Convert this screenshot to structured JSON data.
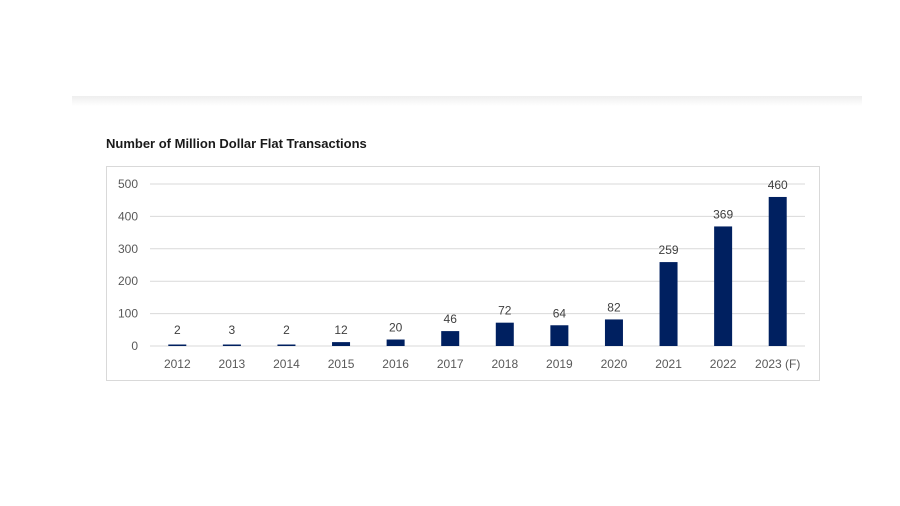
{
  "chart_data": {
    "type": "bar",
    "title": "Number of Million Dollar Flat Transactions",
    "xlabel": "",
    "ylabel": "",
    "categories": [
      "2012",
      "2013",
      "2014",
      "2015",
      "2016",
      "2017",
      "2018",
      "2019",
      "2020",
      "2021",
      "2022",
      "2023 (F)"
    ],
    "values": [
      2,
      3,
      2,
      12,
      20,
      46,
      72,
      64,
      82,
      259,
      369,
      460
    ],
    "data_labels": [
      "2",
      "3",
      "2",
      "12",
      "20",
      "46",
      "72",
      "64",
      "82",
      "259",
      "369",
      "460"
    ],
    "ylim": [
      0,
      500
    ],
    "yticks": [
      0,
      100,
      200,
      300,
      400,
      500
    ],
    "ytick_labels": [
      "0",
      "100",
      "200",
      "300",
      "400",
      "500"
    ],
    "grid": true,
    "legend": "none",
    "bar_color": "#002060",
    "grid_color": "#d9d9d9"
  }
}
